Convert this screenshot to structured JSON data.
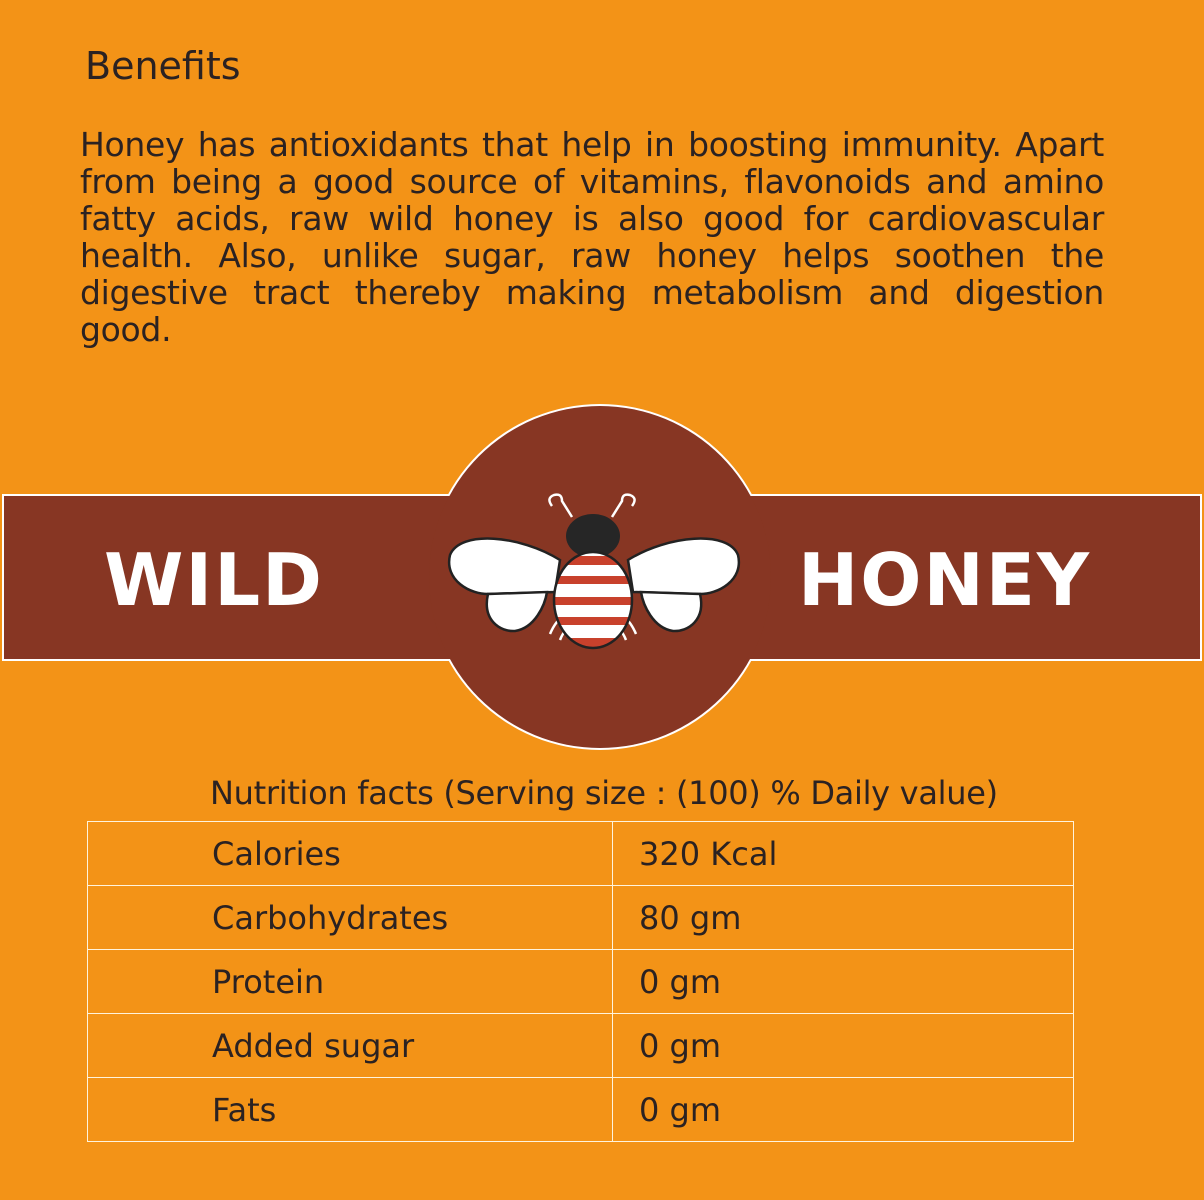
{
  "benefits": {
    "heading": "Benefits",
    "text": "Honey has antioxidants that help in boosting immunity. Apart from being a good source of vitamins, flavonoids and amino fatty acids, raw wild honey is also good for cardiovascular health. Also, unlike sugar, raw honey helps soothen the digestive tract thereby making metabolism and digestion good."
  },
  "brand": {
    "left_word": "WILD",
    "right_word": "HONEY",
    "icon": "bee-icon"
  },
  "colors": {
    "background": "#f39317",
    "band": "#873623",
    "stripe": "#c8412c"
  },
  "nutrition": {
    "caption": "Nutrition facts (Serving size : (100) % Daily value)",
    "rows": [
      {
        "label": "Calories",
        "value": "320 Kcal"
      },
      {
        "label": "Carbohydrates",
        "value": "80 gm"
      },
      {
        "label": "Protein",
        "value": "0 gm"
      },
      {
        "label": "Added sugar",
        "value": "0 gm"
      },
      {
        "label": "Fats",
        "value": "0 gm"
      }
    ]
  }
}
